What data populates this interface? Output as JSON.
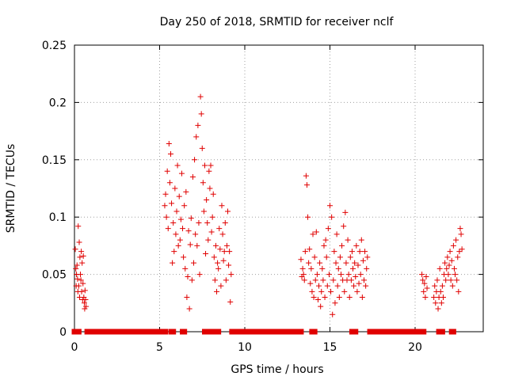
{
  "chart_data": {
    "type": "scatter",
    "title": "Day 250 of 2018, SRMTID for receiver nclf",
    "xlabel": "GPS time / hours",
    "ylabel": "SRMTID / TECUs",
    "xlim": [
      0,
      24
    ],
    "ylim": [
      0,
      0.25
    ],
    "xticks": [
      0,
      5,
      10,
      15,
      20
    ],
    "xtick_labels": [
      "0",
      "5",
      "10",
      "15",
      "20"
    ],
    "yticks": [
      0,
      0.05,
      0.1,
      0.15,
      0.2,
      0.25
    ],
    "ytick_labels": [
      "0",
      "0.05",
      "0.1",
      "0.15",
      "0.2",
      "0.25"
    ],
    "grid": true,
    "marker": "plus",
    "color": "#e00000",
    "series": [
      {
        "name": "SRMTID",
        "points": [
          [
            0.05,
            0.072
          ],
          [
            0.08,
            0.055
          ],
          [
            0.1,
            0.04
          ],
          [
            0.12,
            0.05
          ],
          [
            0.15,
            0.058
          ],
          [
            0.18,
            0.046
          ],
          [
            0.2,
            0.035
          ],
          [
            0.22,
            0.092
          ],
          [
            0.25,
            0.04
          ],
          [
            0.28,
            0.078
          ],
          [
            0.3,
            0.03
          ],
          [
            0.32,
            0.065
          ],
          [
            0.35,
            0.05
          ],
          [
            0.38,
            0.045
          ],
          [
            0.4,
            0.07
          ],
          [
            0.42,
            0.035
          ],
          [
            0.45,
            0.06
          ],
          [
            0.48,
            0.028
          ],
          [
            0.5,
            0.042
          ],
          [
            0.52,
            0.066
          ],
          [
            0.55,
            0.03
          ],
          [
            0.58,
            0.025
          ],
          [
            0.6,
            0.02
          ],
          [
            0.62,
            0.036
          ],
          [
            0.65,
            0.028
          ],
          [
            0.68,
            0.022
          ],
          [
            5.3,
            0.11
          ],
          [
            5.35,
            0.12
          ],
          [
            5.4,
            0.1
          ],
          [
            5.45,
            0.14
          ],
          [
            5.5,
            0.09
          ],
          [
            5.55,
            0.164
          ],
          [
            5.6,
            0.13
          ],
          [
            5.65,
            0.155
          ],
          [
            5.7,
            0.112
          ],
          [
            5.75,
            0.06
          ],
          [
            5.8,
            0.095
          ],
          [
            5.85,
            0.07
          ],
          [
            5.9,
            0.125
          ],
          [
            5.95,
            0.085
          ],
          [
            6.0,
            0.105
          ],
          [
            6.05,
            0.145
          ],
          [
            6.1,
            0.075
          ],
          [
            6.15,
            0.118
          ],
          [
            6.2,
            0.08
          ],
          [
            6.25,
            0.098
          ],
          [
            6.3,
            0.138
          ],
          [
            6.35,
            0.09
          ],
          [
            6.4,
            0.065
          ],
          [
            6.45,
            0.11
          ],
          [
            6.5,
            0.055
          ],
          [
            6.55,
            0.122
          ],
          [
            6.6,
            0.03
          ],
          [
            6.65,
            0.048
          ],
          [
            6.7,
            0.088
          ],
          [
            6.75,
            0.02
          ],
          [
            6.8,
            0.076
          ],
          [
            6.85,
            0.099
          ],
          [
            6.9,
            0.045
          ],
          [
            6.95,
            0.135
          ],
          [
            7.0,
            0.06
          ],
          [
            7.05,
            0.15
          ],
          [
            7.1,
            0.085
          ],
          [
            7.15,
            0.17
          ],
          [
            7.2,
            0.075
          ],
          [
            7.25,
            0.18
          ],
          [
            7.3,
            0.095
          ],
          [
            7.35,
            0.05
          ],
          [
            7.4,
            0.205
          ],
          [
            7.45,
            0.19
          ],
          [
            7.5,
            0.16
          ],
          [
            7.55,
            0.13
          ],
          [
            7.6,
            0.105
          ],
          [
            7.65,
            0.145
          ],
          [
            7.7,
            0.068
          ],
          [
            7.75,
            0.115
          ],
          [
            7.8,
            0.095
          ],
          [
            7.85,
            0.08
          ],
          [
            7.9,
            0.14
          ],
          [
            7.95,
            0.125
          ],
          [
            8.0,
            0.145
          ],
          [
            8.05,
            0.087
          ],
          [
            8.1,
            0.1
          ],
          [
            8.15,
            0.12
          ],
          [
            8.2,
            0.065
          ],
          [
            8.25,
            0.045
          ],
          [
            8.3,
            0.075
          ],
          [
            8.35,
            0.035
          ],
          [
            8.4,
            0.06
          ],
          [
            8.45,
            0.055
          ],
          [
            8.5,
            0.09
          ],
          [
            8.55,
            0.072
          ],
          [
            8.6,
            0.04
          ],
          [
            8.65,
            0.11
          ],
          [
            8.7,
            0.085
          ],
          [
            8.75,
            0.062
          ],
          [
            8.8,
            0.07
          ],
          [
            8.85,
            0.095
          ],
          [
            8.9,
            0.045
          ],
          [
            8.95,
            0.075
          ],
          [
            9.0,
            0.105
          ],
          [
            9.05,
            0.058
          ],
          [
            9.1,
            0.07
          ],
          [
            9.15,
            0.026
          ],
          [
            9.2,
            0.05
          ],
          [
            13.3,
            0.063
          ],
          [
            13.35,
            0.048
          ],
          [
            13.4,
            0.055
          ],
          [
            13.45,
            0.05
          ],
          [
            13.5,
            0.045
          ],
          [
            13.55,
            0.07
          ],
          [
            13.6,
            0.136
          ],
          [
            13.65,
            0.128
          ],
          [
            13.7,
            0.1
          ],
          [
            13.75,
            0.06
          ],
          [
            13.8,
            0.072
          ],
          [
            13.85,
            0.042
          ],
          [
            13.9,
            0.055
          ],
          [
            13.95,
            0.035
          ],
          [
            14.0,
            0.085
          ],
          [
            14.05,
            0.03
          ],
          [
            14.1,
            0.065
          ],
          [
            14.15,
            0.045
          ],
          [
            14.2,
            0.087
          ],
          [
            14.25,
            0.05
          ],
          [
            14.3,
            0.028
          ],
          [
            14.35,
            0.04
          ],
          [
            14.4,
            0.06
          ],
          [
            14.45,
            0.022
          ],
          [
            14.5,
            0.035
          ],
          [
            14.55,
            0.055
          ],
          [
            14.6,
            0.045
          ],
          [
            14.65,
            0.075
          ],
          [
            14.7,
            0.03
          ],
          [
            14.75,
            0.08
          ],
          [
            14.8,
            0.065
          ],
          [
            14.85,
            0.04
          ],
          [
            14.9,
            0.09
          ],
          [
            14.95,
            0.05
          ],
          [
            15.0,
            0.11
          ],
          [
            15.05,
            0.035
          ],
          [
            15.1,
            0.1
          ],
          [
            15.15,
            0.015
          ],
          [
            15.2,
            0.045
          ],
          [
            15.25,
            0.07
          ],
          [
            15.3,
            0.025
          ],
          [
            15.35,
            0.06
          ],
          [
            15.4,
            0.085
          ],
          [
            15.45,
            0.04
          ],
          [
            15.5,
            0.055
          ],
          [
            15.55,
            0.03
          ],
          [
            15.6,
            0.065
          ],
          [
            15.65,
            0.05
          ],
          [
            15.7,
            0.075
          ],
          [
            15.75,
            0.045
          ],
          [
            15.8,
            0.092
          ],
          [
            15.85,
            0.035
          ],
          [
            15.9,
            0.104
          ],
          [
            15.95,
            0.06
          ],
          [
            16.0,
            0.045
          ],
          [
            16.05,
            0.08
          ],
          [
            16.1,
            0.05
          ],
          [
            16.15,
            0.03
          ],
          [
            16.2,
            0.065
          ],
          [
            16.25,
            0.045
          ],
          [
            16.3,
            0.07
          ],
          [
            16.35,
            0.055
          ],
          [
            16.4,
            0.04
          ],
          [
            16.45,
            0.06
          ],
          [
            16.5,
            0.048
          ],
          [
            16.55,
            0.075
          ],
          [
            16.6,
            0.035
          ],
          [
            16.65,
            0.058
          ],
          [
            16.7,
            0.042
          ],
          [
            16.75,
            0.07
          ],
          [
            16.8,
            0.05
          ],
          [
            16.85,
            0.08
          ],
          [
            16.9,
            0.03
          ],
          [
            16.95,
            0.062
          ],
          [
            17.0,
            0.045
          ],
          [
            17.05,
            0.07
          ],
          [
            17.1,
            0.04
          ],
          [
            17.15,
            0.055
          ],
          [
            17.2,
            0.065
          ],
          [
            20.4,
            0.05
          ],
          [
            20.45,
            0.045
          ],
          [
            20.5,
            0.035
          ],
          [
            20.55,
            0.042
          ],
          [
            20.6,
            0.03
          ],
          [
            20.65,
            0.048
          ],
          [
            20.7,
            0.038
          ],
          [
            21.1,
            0.03
          ],
          [
            21.15,
            0.04
          ],
          [
            21.2,
            0.025
          ],
          [
            21.25,
            0.035
          ],
          [
            21.3,
            0.045
          ],
          [
            21.35,
            0.02
          ],
          [
            21.4,
            0.03
          ],
          [
            21.45,
            0.055
          ],
          [
            21.5,
            0.035
          ],
          [
            21.55,
            0.025
          ],
          [
            21.6,
            0.04
          ],
          [
            21.65,
            0.03
          ],
          [
            21.7,
            0.05
          ],
          [
            21.75,
            0.06
          ],
          [
            21.8,
            0.045
          ],
          [
            21.85,
            0.055
          ],
          [
            21.9,
            0.065
          ],
          [
            21.95,
            0.05
          ],
          [
            22.0,
            0.058
          ],
          [
            22.05,
            0.07
          ],
          [
            22.1,
            0.045
          ],
          [
            22.15,
            0.062
          ],
          [
            22.2,
            0.04
          ],
          [
            22.25,
            0.075
          ],
          [
            22.3,
            0.055
          ],
          [
            22.35,
            0.05
          ],
          [
            22.4,
            0.08
          ],
          [
            22.45,
            0.045
          ],
          [
            22.5,
            0.065
          ],
          [
            22.55,
            0.035
          ],
          [
            22.6,
            0.07
          ],
          [
            22.65,
            0.09
          ],
          [
            22.7,
            0.085
          ],
          [
            22.75,
            0.072
          ]
        ],
        "zero_segments": [
          [
            0.0,
            0.25
          ],
          [
            0.75,
            5.35
          ],
          [
            5.7,
            5.8
          ],
          [
            6.35,
            6.45
          ],
          [
            7.65,
            7.8
          ],
          [
            8.1,
            8.45
          ],
          [
            9.25,
            13.3
          ],
          [
            13.95,
            14.1
          ],
          [
            16.3,
            16.5
          ],
          [
            17.35,
            19.7
          ],
          [
            19.85,
            20.5
          ],
          [
            21.4,
            21.6
          ],
          [
            22.15,
            22.25
          ]
        ]
      }
    ]
  }
}
